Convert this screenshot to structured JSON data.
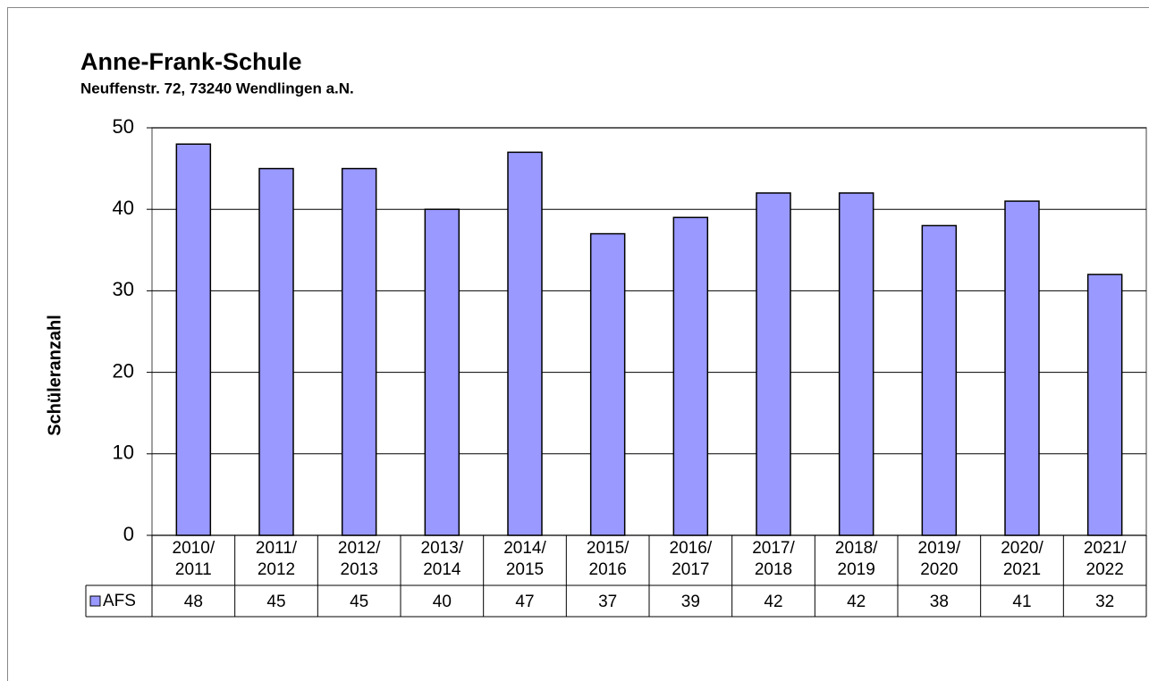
{
  "chart_data": {
    "type": "bar",
    "title": "Anne-Frank-Schule",
    "subtitle": "Neuffenstr. 72, 73240 Wendlingen a.N.",
    "y_label": "Schüleranzahl",
    "categories": [
      "2010/\n2011",
      "2011/\n2012",
      "2012/\n2013",
      "2013/\n2014",
      "2014/\n2015",
      "2015/\n2016",
      "2016/\n2017",
      "2017/\n2018",
      "2018/\n2019",
      "2019/\n2020",
      "2020/\n2021",
      "2021/\n2022"
    ],
    "series": [
      {
        "name": "AFS",
        "color": "#9999ff",
        "values": [
          48,
          45,
          45,
          40,
          47,
          37,
          39,
          42,
          42,
          38,
          41,
          32
        ]
      }
    ],
    "ylim": [
      0,
      50
    ],
    "yticks": [
      0,
      10,
      20,
      30,
      40,
      50
    ],
    "grid": true
  }
}
